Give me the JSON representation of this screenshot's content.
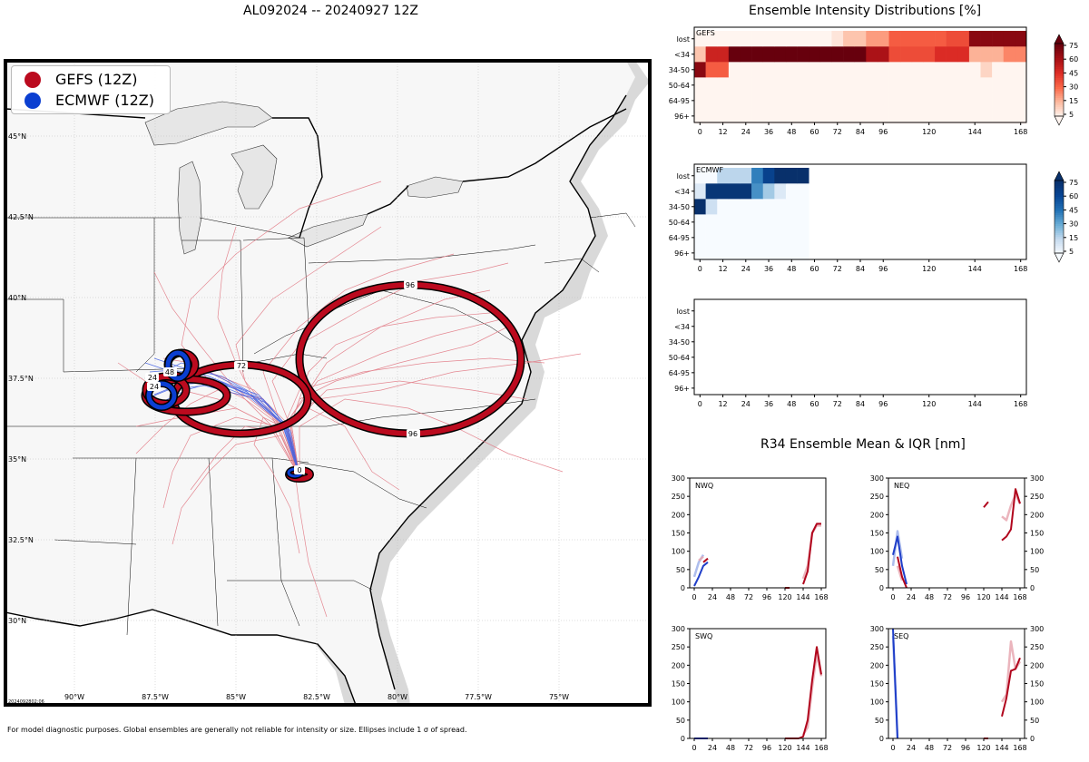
{
  "map": {
    "title": "AL092024 -- 20240927 12Z",
    "legend": [
      {
        "label": "GEFS (12Z)",
        "color": "#bb0a1e"
      },
      {
        "label": "ECMWF (12Z)",
        "color": "#0b3fd1"
      }
    ],
    "lat_labels": [
      "45°N",
      "42.5°N",
      "40°N",
      "37.5°N",
      "35°N",
      "32.5°N",
      "30°N"
    ],
    "lon_labels": [
      "90°W",
      "87.5°W",
      "85°W",
      "82.5°W",
      "80°W",
      "77.5°W",
      "75°W"
    ],
    "stamp": "2024092802:06",
    "footnote": "For model diagnostic purposes. Global ensembles are generally not reliable for intensity or size. Ellipses include 1 σ of spread.",
    "ellipse_labels": [
      "96",
      "96",
      "72",
      "24",
      "24",
      "48",
      "0"
    ]
  },
  "intensity": {
    "title": "Ensemble Intensity Distributions [%]",
    "rows": [
      "96+",
      "64-95",
      "50-64",
      "34-50",
      "<34",
      "lost"
    ],
    "xticks": [
      "0",
      "12",
      "24",
      "36",
      "48",
      "60",
      "72",
      "84",
      "96",
      "120",
      "144",
      "168"
    ],
    "panels": [
      {
        "label": "GEFS"
      },
      {
        "label": "ECMWF"
      },
      {
        "label": ""
      }
    ],
    "colorbar_ticks": [
      "75",
      "60",
      "45",
      "30",
      "15",
      "5"
    ]
  },
  "r34": {
    "title": "R34 Ensemble Mean & IQR [nm]",
    "quadrants": [
      "NWQ",
      "NEQ",
      "SWQ",
      "SEQ"
    ],
    "yticks": [
      "300",
      "250",
      "200",
      "150",
      "100",
      "50",
      "0"
    ],
    "xticks": [
      "0",
      "24",
      "48",
      "72",
      "96",
      "120",
      "144",
      "168"
    ]
  },
  "chart_data": [
    {
      "type": "heatmap",
      "title": "GEFS intensity distribution [%]",
      "x_hours": [
        0,
        6,
        12,
        18,
        24,
        30,
        36,
        42,
        48,
        54,
        60,
        66,
        72,
        78,
        84,
        90,
        96,
        102,
        108,
        114,
        120,
        126,
        132,
        138,
        144,
        150,
        156,
        162,
        168
      ],
      "rows": [
        "96+",
        "64-95",
        "50-64",
        "34-50",
        "<34",
        "lost"
      ],
      "values": {
        "96+": [
          0,
          0,
          0,
          0,
          0,
          0,
          0,
          0,
          0,
          0,
          0,
          0,
          0,
          0,
          0,
          0,
          0,
          0,
          0,
          0,
          0,
          0,
          0,
          0,
          0,
          0,
          0,
          0,
          0
        ],
        "64-95": [
          0,
          0,
          0,
          0,
          0,
          0,
          0,
          0,
          0,
          0,
          0,
          0,
          0,
          0,
          0,
          0,
          0,
          0,
          0,
          0,
          0,
          0,
          0,
          0,
          0,
          0,
          0,
          0,
          0
        ],
        "50-64": [
          0,
          0,
          0,
          0,
          0,
          0,
          0,
          0,
          0,
          0,
          0,
          0,
          0,
          0,
          0,
          0,
          0,
          0,
          0,
          0,
          0,
          0,
          0,
          0,
          0,
          0,
          0,
          0,
          0
        ],
        "34-50": [
          80,
          40,
          40,
          0,
          0,
          0,
          0,
          0,
          0,
          0,
          0,
          0,
          0,
          0,
          0,
          0,
          0,
          0,
          0,
          0,
          0,
          0,
          0,
          0,
          0,
          10,
          0,
          0,
          0
        ],
        "<34": [
          15,
          60,
          60,
          90,
          90,
          90,
          90,
          90,
          90,
          90,
          90,
          90,
          90,
          90,
          90,
          70,
          70,
          45,
          45,
          45,
          45,
          55,
          55,
          55,
          20,
          20,
          20,
          30,
          30
        ],
        "lost": [
          0,
          0,
          0,
          0,
          0,
          0,
          0,
          0,
          0,
          0,
          0,
          0,
          5,
          15,
          15,
          25,
          25,
          40,
          40,
          40,
          40,
          40,
          45,
          45,
          80,
          80,
          80,
          80,
          80
        ]
      }
    },
    {
      "type": "heatmap",
      "title": "ECMWF intensity distribution [%]",
      "x_hours": [
        0,
        6,
        12,
        18,
        24,
        30,
        36,
        42,
        48,
        54
      ],
      "rows": [
        "96+",
        "64-95",
        "50-64",
        "34-50",
        "<34",
        "lost"
      ],
      "values": {
        "96+": [
          0,
          0,
          0,
          0,
          0,
          0,
          0,
          0,
          0,
          0
        ],
        "64-95": [
          0,
          0,
          0,
          0,
          0,
          0,
          0,
          0,
          0,
          0
        ],
        "50-64": [
          0,
          0,
          0,
          0,
          0,
          0,
          0,
          0,
          0,
          0
        ],
        "34-50": [
          90,
          15,
          0,
          0,
          0,
          0,
          0,
          0,
          0,
          0
        ],
        "<34": [
          10,
          85,
          85,
          85,
          85,
          45,
          25,
          10,
          0,
          0
        ],
        "lost": [
          0,
          0,
          20,
          20,
          20,
          50,
          75,
          90,
          95,
          95
        ]
      }
    },
    {
      "type": "heatmap",
      "title": "Third ensemble (empty)",
      "x_hours": [],
      "rows": [
        "96+",
        "64-95",
        "50-64",
        "34-50",
        "<34",
        "lost"
      ],
      "values": {}
    },
    {
      "type": "line",
      "title": "NWQ",
      "ylim": [
        0,
        300
      ],
      "xlim": [
        -6,
        174
      ],
      "series": [
        {
          "name": "ECMWF mean",
          "color": "#1f3ec9",
          "points": [
            [
              0,
              5
            ],
            [
              6,
              30
            ],
            [
              12,
              60
            ],
            [
              18,
              70
            ]
          ]
        },
        {
          "name": "ECMWF IQR",
          "color": "#9fb2ea",
          "points": [
            [
              0,
              30
            ],
            [
              6,
              70
            ],
            [
              12,
              90
            ]
          ]
        },
        {
          "name": "GEFS mean",
          "color": "#b1061d",
          "points": [
            [
              12,
              70
            ],
            [
              18,
              80
            ],
            [
              120,
              0
            ],
            [
              126,
              0
            ],
            [
              144,
              10
            ],
            [
              150,
              45
            ],
            [
              156,
              150
            ],
            [
              162,
              175
            ],
            [
              168,
              175
            ]
          ]
        },
        {
          "name": "GEFS IQR",
          "color": "#e8a8b2",
          "points": [
            [
              6,
              75
            ],
            [
              12,
              85
            ],
            [
              144,
              25
            ],
            [
              150,
              60
            ],
            [
              156,
              150
            ],
            [
              162,
              170
            ],
            [
              168,
              170
            ]
          ]
        }
      ]
    },
    {
      "type": "line",
      "title": "NEQ",
      "ylim": [
        0,
        300
      ],
      "xlim": [
        -6,
        174
      ],
      "series": [
        {
          "name": "ECMWF mean",
          "color": "#1f3ec9",
          "points": [
            [
              0,
              90
            ],
            [
              6,
              140
            ],
            [
              12,
              60
            ],
            [
              18,
              10
            ]
          ]
        },
        {
          "name": "ECMWF IQR",
          "color": "#9fb2ea",
          "points": [
            [
              0,
              60
            ],
            [
              6,
              155
            ],
            [
              12,
              80
            ]
          ]
        },
        {
          "name": "GEFS mean",
          "color": "#b1061d",
          "points": [
            [
              6,
              85
            ],
            [
              12,
              30
            ],
            [
              18,
              0
            ],
            [
              120,
              220
            ],
            [
              126,
              235
            ],
            [
              144,
              130
            ],
            [
              150,
              140
            ],
            [
              156,
              160
            ],
            [
              162,
              270
            ],
            [
              168,
              230
            ]
          ]
        },
        {
          "name": "GEFS IQR",
          "color": "#e8a8b2",
          "points": [
            [
              6,
              60
            ],
            [
              12,
              20
            ],
            [
              144,
              195
            ],
            [
              150,
              185
            ],
            [
              156,
              225
            ],
            [
              162,
              255
            ],
            [
              168,
              230
            ]
          ]
        }
      ]
    },
    {
      "type": "line",
      "title": "SWQ",
      "ylim": [
        0,
        300
      ],
      "xlim": [
        -6,
        174
      ],
      "series": [
        {
          "name": "ECMWF mean",
          "color": "#1f3ec9",
          "points": [
            [
              0,
              0
            ],
            [
              6,
              0
            ],
            [
              12,
              0
            ],
            [
              18,
              0
            ]
          ]
        },
        {
          "name": "GEFS mean",
          "color": "#b1061d",
          "points": [
            [
              120,
              0
            ],
            [
              126,
              0
            ],
            [
              138,
              0
            ],
            [
              144,
              5
            ],
            [
              150,
              50
            ],
            [
              156,
              160
            ],
            [
              162,
              250
            ],
            [
              168,
              175
            ]
          ]
        },
        {
          "name": "GEFS IQR",
          "color": "#e8a8b2",
          "points": [
            [
              144,
              10
            ],
            [
              150,
              30
            ],
            [
              156,
              140
            ],
            [
              162,
              230
            ],
            [
              168,
              170
            ]
          ]
        }
      ]
    },
    {
      "type": "line",
      "title": "SEQ",
      "ylim": [
        0,
        300
      ],
      "xlim": [
        -6,
        174
      ],
      "series": [
        {
          "name": "ECMWF mean",
          "color": "#1f3ec9",
          "points": [
            [
              0,
              300
            ],
            [
              6,
              0
            ]
          ]
        },
        {
          "name": "ECMWF IQR",
          "color": "#9fb2ea",
          "points": [
            [
              0,
              280
            ],
            [
              6,
              0
            ]
          ]
        },
        {
          "name": "GEFS mean",
          "color": "#b1061d",
          "points": [
            [
              120,
              0
            ],
            [
              126,
              0
            ],
            [
              144,
              60
            ],
            [
              150,
              110
            ],
            [
              156,
              185
            ],
            [
              162,
              190
            ],
            [
              168,
              220
            ]
          ]
        },
        {
          "name": "GEFS IQR",
          "color": "#e8a8b2",
          "points": [
            [
              144,
              100
            ],
            [
              150,
              120
            ],
            [
              156,
              265
            ],
            [
              162,
              190
            ],
            [
              168,
              210
            ]
          ]
        }
      ]
    }
  ]
}
